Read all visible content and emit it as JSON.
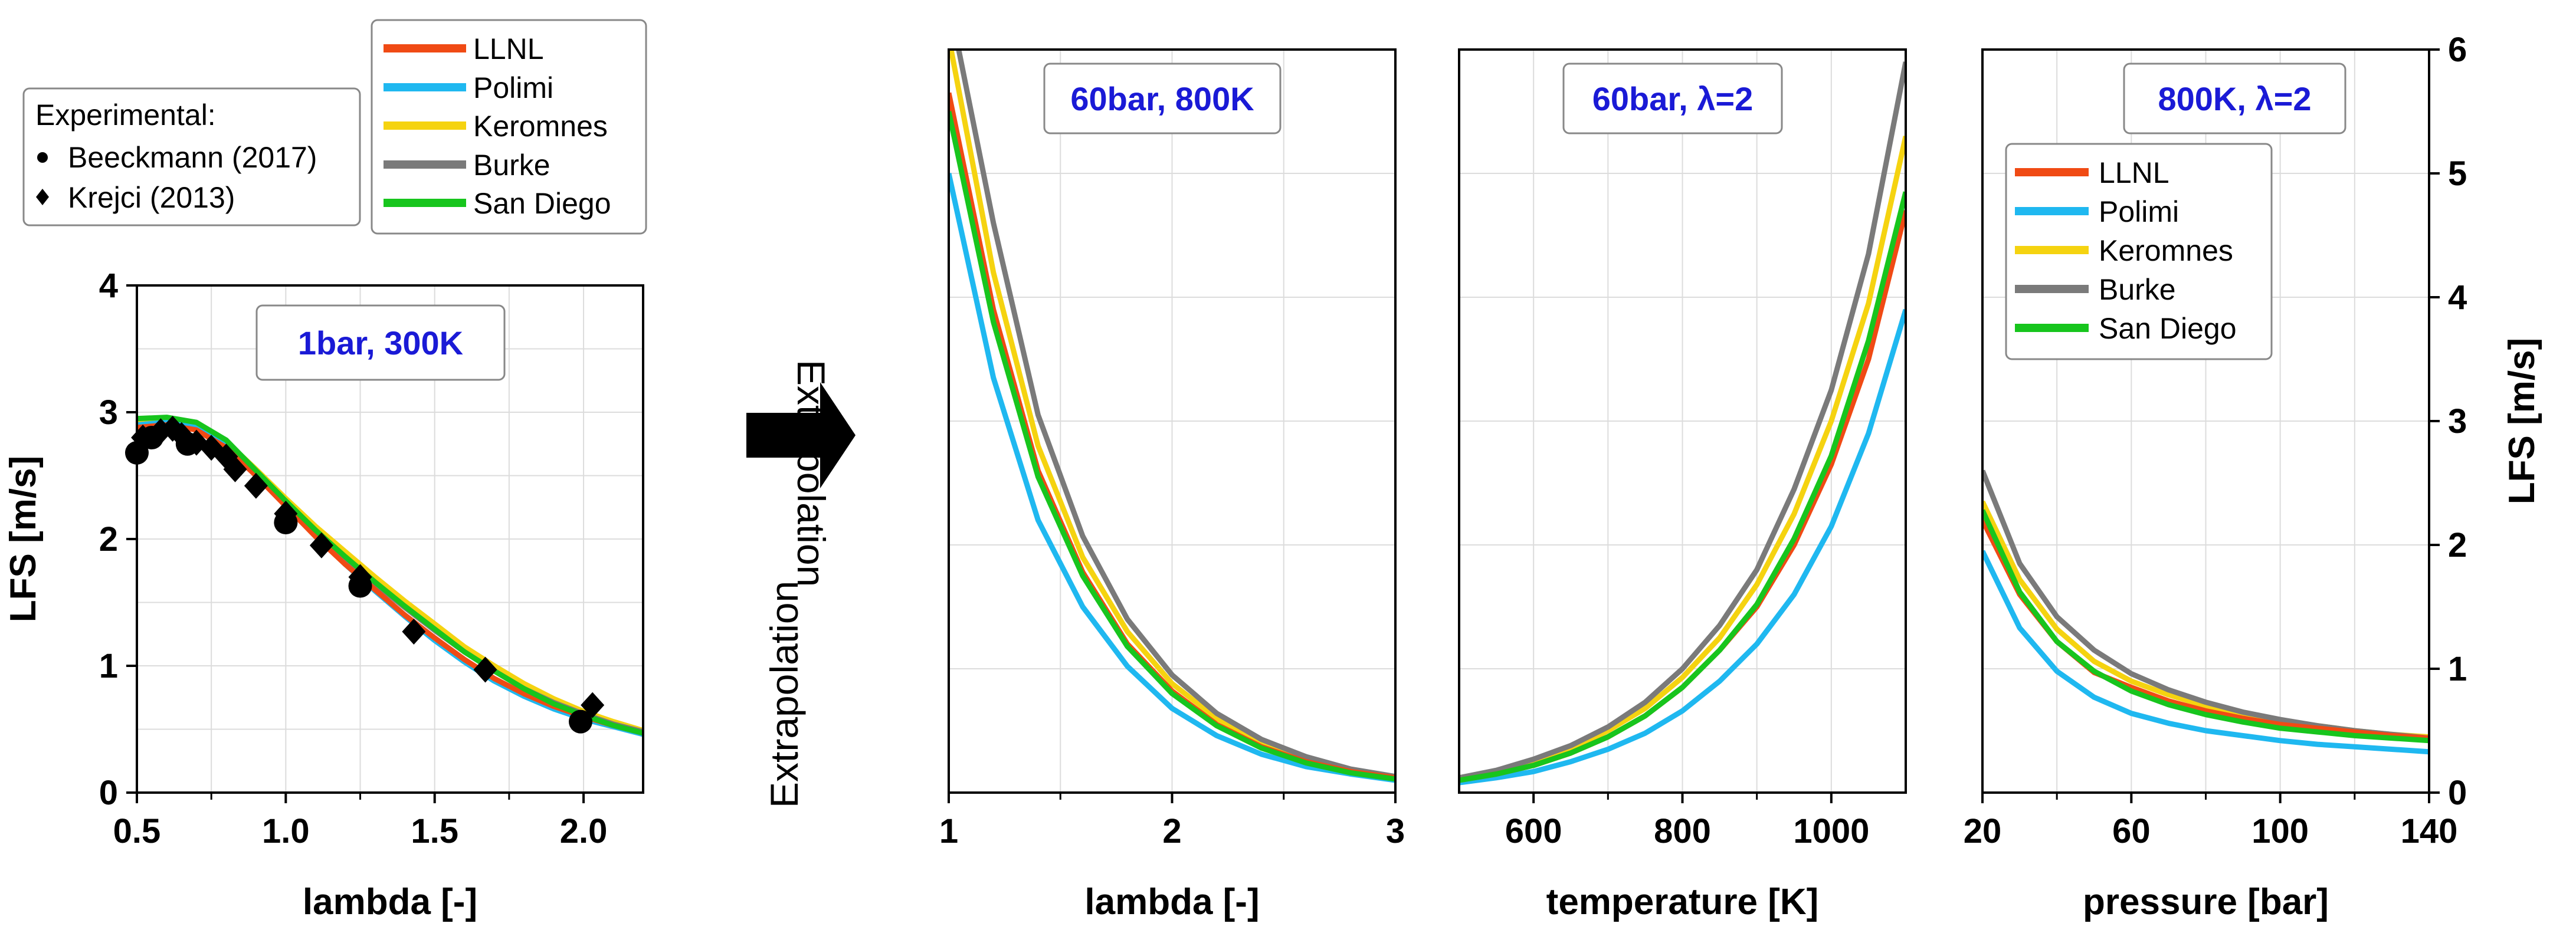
{
  "arrow_label_top": "Extrapolation",
  "arrow_label_bottom": "Extrapolation",
  "legend": {
    "mechanisms": [
      {
        "name": "LLNL",
        "color": "#f04a14"
      },
      {
        "name": "Polimi",
        "color": "#1fb8f0"
      },
      {
        "name": "Keromnes",
        "color": "#f5d310"
      },
      {
        "name": "Burke",
        "color": "#7a7a7a"
      },
      {
        "name": "San Diego",
        "color": "#17c51d"
      }
    ],
    "experimental_title": "Experimental:",
    "experimental": [
      {
        "name": "Beeckmann (2017)",
        "marker": "circle"
      },
      {
        "name": "Krejci (2013)",
        "marker": "diamond"
      }
    ]
  },
  "chart_data": [
    {
      "type": "line",
      "title": "1bar, 300K",
      "xlabel": "lambda [-]",
      "ylabel": "LFS  [m/s]",
      "xlim": [
        0.5,
        2.2
      ],
      "ylim": [
        0,
        4
      ],
      "xticks": [
        "0.5",
        "1.0",
        "1.5",
        "2.0"
      ],
      "yticks": [
        "0",
        "1",
        "2",
        "3",
        "4"
      ],
      "grid": true,
      "x": [
        0.5,
        0.6,
        0.7,
        0.8,
        0.9,
        1.0,
        1.1,
        1.2,
        1.3,
        1.4,
        1.5,
        1.6,
        1.7,
        1.8,
        1.9,
        2.0,
        2.1,
        2.2
      ],
      "series": [
        {
          "name": "LLNL",
          "values": [
            2.88,
            2.9,
            2.86,
            2.72,
            2.5,
            2.26,
            2.02,
            1.8,
            1.6,
            1.4,
            1.22,
            1.05,
            0.9,
            0.78,
            0.68,
            0.6,
            0.53,
            0.47
          ]
        },
        {
          "name": "Polimi",
          "values": [
            2.9,
            2.92,
            2.88,
            2.74,
            2.52,
            2.27,
            2.03,
            1.8,
            1.59,
            1.39,
            1.2,
            1.03,
            0.88,
            0.76,
            0.66,
            0.58,
            0.52,
            0.46
          ]
        },
        {
          "name": "Keromnes",
          "values": [
            2.92,
            2.94,
            2.9,
            2.77,
            2.55,
            2.32,
            2.1,
            1.9,
            1.7,
            1.51,
            1.33,
            1.15,
            1.0,
            0.86,
            0.74,
            0.64,
            0.56,
            0.49
          ]
        },
        {
          "name": "Burke",
          "values": [
            2.9,
            2.92,
            2.88,
            2.74,
            2.52,
            2.29,
            2.06,
            1.85,
            1.65,
            1.46,
            1.28,
            1.11,
            0.96,
            0.82,
            0.71,
            0.62,
            0.54,
            0.48
          ]
        },
        {
          "name": "San Diego",
          "values": [
            2.95,
            2.96,
            2.92,
            2.78,
            2.54,
            2.3,
            2.07,
            1.86,
            1.66,
            1.47,
            1.29,
            1.11,
            0.96,
            0.82,
            0.7,
            0.61,
            0.53,
            0.47
          ]
        }
      ],
      "experimental": [
        {
          "name": "Beeckmann (2017)",
          "marker": "circle",
          "points": [
            [
              0.5,
              2.68
            ],
            [
              0.55,
              2.8
            ],
            [
              0.67,
              2.75
            ],
            [
              1.0,
              2.13
            ],
            [
              1.25,
              1.63
            ],
            [
              1.99,
              0.56
            ]
          ]
        },
        {
          "name": "Krejci (2013)",
          "marker": "diamond",
          "points": [
            [
              0.52,
              2.8
            ],
            [
              0.58,
              2.85
            ],
            [
              0.62,
              2.87
            ],
            [
              0.65,
              2.82
            ],
            [
              0.7,
              2.76
            ],
            [
              0.75,
              2.72
            ],
            [
              0.8,
              2.65
            ],
            [
              0.83,
              2.55
            ],
            [
              0.9,
              2.42
            ],
            [
              1.0,
              2.2
            ],
            [
              1.12,
              1.95
            ],
            [
              1.25,
              1.7
            ],
            [
              1.43,
              1.27
            ],
            [
              1.67,
              0.97
            ],
            [
              2.03,
              0.69
            ]
          ]
        }
      ]
    },
    {
      "type": "line",
      "title": "60bar, 800K",
      "xlabel": "lambda [-]",
      "xlim": [
        1,
        3
      ],
      "ylim": [
        0,
        6
      ],
      "xticks": [
        "1",
        "2",
        "3"
      ],
      "grid": true,
      "x": [
        1,
        1.2,
        1.4,
        1.6,
        1.8,
        2.0,
        2.2,
        2.4,
        2.6,
        2.8,
        3.0
      ],
      "series": [
        {
          "name": "LLNL",
          "values": [
            5.65,
            3.9,
            2.6,
            1.78,
            1.2,
            0.82,
            0.55,
            0.37,
            0.25,
            0.17,
            0.12
          ]
        },
        {
          "name": "Polimi",
          "values": [
            5.0,
            3.35,
            2.2,
            1.5,
            1.02,
            0.68,
            0.46,
            0.31,
            0.21,
            0.15,
            0.1
          ]
        },
        {
          "name": "Keromnes",
          "values": [
            6.1,
            4.2,
            2.8,
            1.9,
            1.3,
            0.88,
            0.6,
            0.4,
            0.27,
            0.18,
            0.12
          ]
        },
        {
          "name": "Burke",
          "values": [
            6.4,
            4.6,
            3.05,
            2.07,
            1.4,
            0.95,
            0.64,
            0.43,
            0.29,
            0.19,
            0.13
          ]
        },
        {
          "name": "San Diego",
          "values": [
            5.5,
            3.8,
            2.55,
            1.75,
            1.18,
            0.8,
            0.54,
            0.36,
            0.24,
            0.16,
            0.11
          ]
        }
      ]
    },
    {
      "type": "line",
      "title": "60bar, λ=2",
      "xlabel": "temperature [K]",
      "xlim": [
        500,
        1100
      ],
      "ylim": [
        0,
        6
      ],
      "xticks": [
        "600",
        "800",
        "1000"
      ],
      "grid": true,
      "x": [
        500,
        550,
        600,
        650,
        700,
        750,
        800,
        850,
        900,
        950,
        1000,
        1050,
        1100
      ],
      "series": [
        {
          "name": "LLNL",
          "values": [
            0.1,
            0.15,
            0.22,
            0.32,
            0.45,
            0.62,
            0.85,
            1.15,
            1.5,
            2.0,
            2.65,
            3.5,
            4.7
          ]
        },
        {
          "name": "Polimi",
          "values": [
            0.08,
            0.12,
            0.17,
            0.25,
            0.35,
            0.48,
            0.66,
            0.9,
            1.2,
            1.6,
            2.15,
            2.9,
            3.9
          ]
        },
        {
          "name": "Keromnes",
          "values": [
            0.12,
            0.17,
            0.25,
            0.35,
            0.5,
            0.68,
            0.93,
            1.25,
            1.68,
            2.25,
            3.0,
            3.95,
            5.3
          ]
        },
        {
          "name": "Burke",
          "values": [
            0.12,
            0.18,
            0.27,
            0.38,
            0.53,
            0.73,
            1.0,
            1.35,
            1.8,
            2.45,
            3.25,
            4.35,
            5.9
          ]
        },
        {
          "name": "San Diego",
          "values": [
            0.1,
            0.15,
            0.22,
            0.32,
            0.45,
            0.62,
            0.85,
            1.15,
            1.52,
            2.05,
            2.72,
            3.65,
            4.85
          ]
        }
      ]
    },
    {
      "type": "line",
      "title": "800K, λ=2",
      "xlabel": "pressure [bar]",
      "ylabel": "LFS  [m/s]",
      "xlim": [
        20,
        140
      ],
      "ylim": [
        0,
        6
      ],
      "xticks": [
        "20",
        "60",
        "100",
        "140"
      ],
      "yticks": [
        "0",
        "1",
        "2",
        "3",
        "4",
        "5",
        "6"
      ],
      "grid": true,
      "x": [
        20,
        30,
        40,
        50,
        60,
        70,
        80,
        90,
        100,
        110,
        120,
        130,
        140
      ],
      "series": [
        {
          "name": "LLNL",
          "values": [
            2.2,
            1.6,
            1.22,
            0.97,
            0.85,
            0.74,
            0.66,
            0.6,
            0.55,
            0.52,
            0.49,
            0.46,
            0.44
          ]
        },
        {
          "name": "Polimi",
          "values": [
            1.95,
            1.33,
            0.98,
            0.77,
            0.64,
            0.56,
            0.5,
            0.46,
            0.42,
            0.39,
            0.37,
            0.35,
            0.33
          ]
        },
        {
          "name": "Keromnes",
          "values": [
            2.35,
            1.72,
            1.32,
            1.06,
            0.9,
            0.79,
            0.7,
            0.63,
            0.58,
            0.54,
            0.5,
            0.47,
            0.45
          ]
        },
        {
          "name": "Burke",
          "values": [
            2.6,
            1.85,
            1.42,
            1.15,
            0.96,
            0.83,
            0.73,
            0.65,
            0.59,
            0.54,
            0.5,
            0.47,
            0.44
          ]
        },
        {
          "name": "San Diego",
          "values": [
            2.28,
            1.62,
            1.22,
            0.98,
            0.82,
            0.71,
            0.63,
            0.57,
            0.52,
            0.49,
            0.46,
            0.44,
            0.42
          ]
        }
      ]
    }
  ]
}
